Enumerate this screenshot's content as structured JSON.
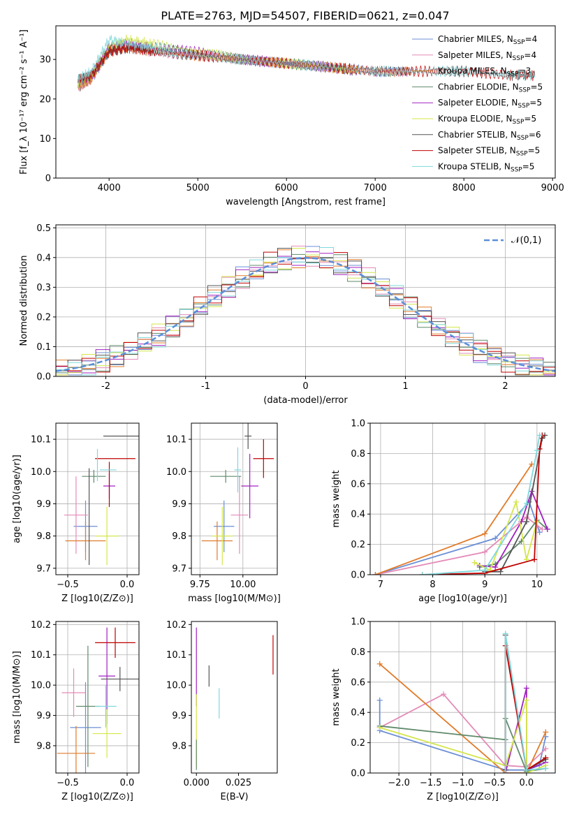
{
  "figure_title": "PLATE=2763, MJD=54507, FIBERID=0621, z=0.047",
  "chart_data": [
    {
      "id": "spectrum",
      "type": "line",
      "xlabel": "wavelength [Angstrom, rest frame]",
      "ylabel": "Flux [f_λ 10⁻¹⁷ erg cm⁻² s⁻¹ A⁻¹]",
      "xlim": [
        3400,
        9030
      ],
      "ylim": [
        0,
        38.5
      ],
      "xticks": [
        4000,
        5000,
        6000,
        7000,
        8000,
        9000
      ],
      "yticks": [
        0,
        10,
        20,
        30
      ],
      "grid": false,
      "legend_position": "top-right",
      "series": [
        {
          "name": "Chabrier MILES, N_SSP=4",
          "color": "#6b8fd6",
          "x": [
            3650,
            3800,
            4000,
            4200,
            4500,
            5000,
            5500,
            6000,
            6500,
            7000,
            7400
          ],
          "y": [
            23,
            25,
            32,
            33,
            32,
            31,
            30,
            29,
            28,
            27,
            27
          ]
        },
        {
          "name": "Salpeter MILES, N_SSP=4",
          "color": "#e48bb8",
          "x": [
            3650,
            3800,
            4000,
            4200,
            4500,
            5000,
            5500,
            6000,
            6500,
            7000,
            7400
          ],
          "y": [
            23,
            25,
            32,
            33,
            32,
            31,
            30,
            29,
            28,
            27,
            27
          ]
        },
        {
          "name": "Kroupa MILES, N_SSP=3",
          "color": "#e07b2a",
          "x": [
            3650,
            3800,
            4000,
            4200,
            4500,
            5000,
            5500,
            6000,
            6500,
            7000,
            7400
          ],
          "y": [
            23,
            25,
            32,
            33,
            32,
            31,
            30,
            29,
            28,
            27,
            27
          ]
        },
        {
          "name": "Chabrier ELODIE, N_SSP=5",
          "color": "#5f8a6a",
          "x": [
            3650,
            3800,
            4000,
            4200,
            4500,
            5000,
            5500,
            6000,
            6500,
            6800
          ],
          "y": [
            24,
            26,
            33,
            34,
            33,
            32,
            30,
            29,
            28,
            27
          ]
        },
        {
          "name": "Salpeter ELODIE, N_SSP=5",
          "color": "#a020c0",
          "x": [
            3650,
            3800,
            4000,
            4200,
            4500,
            5000,
            5500,
            6000,
            6500,
            6800
          ],
          "y": [
            24,
            26,
            33,
            34,
            33,
            32,
            30,
            29,
            28,
            27
          ]
        },
        {
          "name": "Kroupa ELODIE, N_SSP=5",
          "color": "#d4e64a",
          "x": [
            3650,
            3800,
            4000,
            4200,
            4500,
            5000,
            5500,
            6000,
            6500,
            6800
          ],
          "y": [
            24,
            26,
            33,
            35,
            34,
            32,
            30,
            29,
            28,
            27
          ]
        },
        {
          "name": "Chabrier STELIB, N_SSP=6",
          "color": "#555555",
          "x": [
            3650,
            3800,
            4000,
            4200,
            4500,
            5000,
            5500,
            6000,
            6500,
            7000,
            7500,
            8000,
            8500,
            8800
          ],
          "y": [
            25,
            26,
            32,
            33,
            32,
            31,
            30,
            29,
            28,
            27,
            27,
            27,
            26,
            26
          ]
        },
        {
          "name": "Salpeter STELIB, N_SSP=5",
          "color": "#c00000",
          "x": [
            3650,
            3800,
            4000,
            4200,
            4500,
            5000,
            5500,
            6000,
            6500,
            7000,
            7500,
            8000,
            8500,
            8800
          ],
          "y": [
            25,
            26,
            32,
            33,
            32,
            31,
            30,
            29,
            28,
            27,
            27,
            27,
            26,
            26
          ]
        },
        {
          "name": "Kroupa STELIB, N_SSP=5",
          "color": "#7fd8dc",
          "x": [
            3650,
            3800,
            4000,
            4200,
            4500,
            5000,
            5500,
            6000,
            6500,
            7000,
            7500,
            8000,
            8500,
            8800
          ],
          "y": [
            25,
            27,
            35,
            34,
            33,
            31,
            30,
            29,
            28,
            27,
            27,
            27,
            26,
            26
          ]
        }
      ]
    },
    {
      "id": "residuals",
      "type": "line",
      "xlabel": "(data-model)/error",
      "ylabel": "Normed distribution",
      "xlim": [
        -2.5,
        2.5
      ],
      "ylim": [
        0,
        0.51
      ],
      "xticks": [
        -2,
        -1,
        0,
        1,
        2
      ],
      "yticks": [
        0.0,
        0.1,
        0.2,
        0.3,
        0.4,
        0.5
      ],
      "grid": true,
      "legend_position": "top-right",
      "reference_curve": {
        "name": "𝒩(0,1)",
        "color": "#5b8fd8",
        "mean": 0,
        "sigma": 1
      },
      "histogram_colors": [
        "#6b8fd6",
        "#e48bb8",
        "#e07b2a",
        "#5f8a6a",
        "#a020c0",
        "#d4e64a",
        "#555555",
        "#c00000",
        "#7fd8dc"
      ]
    },
    {
      "id": "age-vs-Z",
      "type": "scatter",
      "xlabel": "Z [log10(Z/Z⊙)]",
      "ylabel": "age [log10(age/yr)]",
      "xlim": [
        -0.6,
        0.1
      ],
      "ylim": [
        9.68,
        10.15
      ],
      "xticks": [
        -0.5,
        0.0
      ],
      "xtick_labels": [
        "−0.5",
        "0.0"
      ],
      "yticks": [
        9.7,
        9.8,
        9.9,
        10.0,
        10.1
      ],
      "grid": true,
      "points": [
        {
          "color": "#6b8fd6",
          "x": -0.35,
          "y": 9.83,
          "xerr": 0.1,
          "yerr": 0.08
        },
        {
          "color": "#e48bb8",
          "x": -0.43,
          "y": 9.865,
          "xerr": 0.1,
          "yerr": 0.12
        },
        {
          "color": "#e07b2a",
          "x": -0.35,
          "y": 9.785,
          "xerr": 0.17,
          "yerr": 0.06
        },
        {
          "color": "#5f8a6a",
          "x": -0.28,
          "y": 9.985,
          "xerr": 0.1,
          "yerr": 0.02
        },
        {
          "color": "#a020c0",
          "x": -0.15,
          "y": 9.955,
          "xerr": 0.05,
          "yerr": 0.04
        },
        {
          "color": "#d4e64a",
          "x": -0.17,
          "y": 9.8,
          "xerr": 0.1,
          "yerr": 0.09
        },
        {
          "color": "#555555",
          "x": -0.03,
          "y": 10.11,
          "xerr": 0.17,
          "yerr": 0.0
        },
        {
          "color": "#555555",
          "x": -0.32,
          "y": 9.86,
          "xerr": 0.0,
          "yerr": 0.15
        },
        {
          "color": "#c00000",
          "x": -0.1,
          "y": 10.04,
          "xerr": 0.17,
          "yerr": 0.0
        },
        {
          "color": "#c00000",
          "x": -0.15,
          "y": 9.96,
          "xerr": 0.0,
          "yerr": 0.07
        },
        {
          "color": "#7fd8dc",
          "x": -0.16,
          "y": 10.005,
          "xerr": 0.07,
          "yerr": 0.0
        },
        {
          "color": "#7fd8dc",
          "x": -0.25,
          "y": 10.02,
          "xerr": 0.0,
          "yerr": 0.05
        }
      ]
    },
    {
      "id": "age-vs-mass",
      "type": "scatter",
      "xlabel": "mass [log10(M/M⊙)]",
      "ylabel": "",
      "xlim": [
        9.7,
        10.2
      ],
      "ylim": [
        9.68,
        10.15
      ],
      "xticks": [
        9.75,
        10.0
      ],
      "xtick_labels": [
        "9.75",
        "10.00"
      ],
      "yticks": [
        9.7,
        9.8,
        9.9,
        10.0,
        10.1
      ],
      "grid": true,
      "points": [
        {
          "color": "#6b8fd6",
          "x": 9.89,
          "y": 9.83,
          "xerr": 0.06,
          "yerr": 0.08
        },
        {
          "color": "#e48bb8",
          "x": 9.98,
          "y": 9.865,
          "xerr": 0.05,
          "yerr": 0.12
        },
        {
          "color": "#e07b2a",
          "x": 9.85,
          "y": 9.785,
          "xerr": 0.09,
          "yerr": 0.06
        },
        {
          "color": "#5f8a6a",
          "x": 9.9,
          "y": 9.985,
          "xerr": 0.09,
          "yerr": 0.02
        },
        {
          "color": "#a020c0",
          "x": 10.04,
          "y": 9.955,
          "xerr": 0.05,
          "yerr": 0.1
        },
        {
          "color": "#d4e64a",
          "x": 9.88,
          "y": 9.8,
          "xerr": 0.06,
          "yerr": 0.09
        },
        {
          "color": "#555555",
          "x": 10.03,
          "y": 10.11,
          "xerr": 0.02,
          "yerr": 0.04
        },
        {
          "color": "#c00000",
          "x": 10.12,
          "y": 10.04,
          "xerr": 0.06,
          "yerr": 0.06
        },
        {
          "color": "#7fd8dc",
          "x": 9.97,
          "y": 10.005,
          "xerr": 0.02,
          "yerr": 0.07
        }
      ]
    },
    {
      "id": "weight-vs-age",
      "type": "line",
      "xlabel": "age [log10(age/yr)]",
      "ylabel": "mass weight",
      "xlim": [
        6.8,
        10.35
      ],
      "ylim": [
        0,
        1.0
      ],
      "xticks": [
        7,
        8,
        9,
        10
      ],
      "yticks": [
        0.0,
        0.2,
        0.4,
        0.6,
        0.8,
        1.0
      ],
      "grid": true,
      "series": [
        {
          "color": "#6b8fd6",
          "x": [
            6.9,
            9.2,
            9.85,
            10.05
          ],
          "y": [
            0.0,
            0.24,
            0.48,
            0.28
          ]
        },
        {
          "color": "#e48bb8",
          "x": [
            6.9,
            9.0,
            9.8,
            10.1
          ],
          "y": [
            0.0,
            0.15,
            0.38,
            0.3
          ]
        },
        {
          "color": "#e07b2a",
          "x": [
            6.9,
            9.0,
            9.9
          ],
          "y": [
            0.0,
            0.27,
            0.73
          ]
        },
        {
          "color": "#5f8a6a",
          "x": [
            8.9,
            9.2,
            9.7,
            10.0,
            10.2
          ],
          "y": [
            0.05,
            0.07,
            0.22,
            0.36,
            0.3
          ]
        },
        {
          "color": "#a020c0",
          "x": [
            8.9,
            9.2,
            9.7,
            9.9,
            10.2
          ],
          "y": [
            0.06,
            0.05,
            0.35,
            0.55,
            0.3
          ]
        },
        {
          "color": "#d4e64a",
          "x": [
            8.8,
            9.1,
            9.6,
            9.8,
            10.0
          ],
          "y": [
            0.08,
            0.03,
            0.48,
            0.1,
            0.35
          ]
        },
        {
          "color": "#555555",
          "x": [
            9.0,
            9.3,
            9.8,
            10.1,
            10.15
          ],
          "y": [
            0.02,
            0.02,
            0.35,
            0.9,
            0.92
          ]
        },
        {
          "color": "#c00000",
          "x": [
            7.8,
            9.0,
            9.95,
            10.05,
            10.1
          ],
          "y": [
            0.0,
            0.01,
            0.1,
            0.83,
            0.92
          ]
        },
        {
          "color": "#7fd8dc",
          "x": [
            7.8,
            9.0,
            9.8,
            10.0,
            10.05
          ],
          "y": [
            0.0,
            0.03,
            0.47,
            0.82,
            0.92
          ]
        }
      ]
    },
    {
      "id": "mass-vs-Z",
      "type": "scatter",
      "xlabel": "Z [log10(Z/Z⊙)]",
      "ylabel": "mass [log10(M/M⊙)]",
      "xlim": [
        -0.6,
        0.1
      ],
      "ylim": [
        9.71,
        10.21
      ],
      "xticks": [
        -0.5,
        0.0
      ],
      "xtick_labels": [
        "−0.5",
        "0.0"
      ],
      "yticks": [
        9.8,
        9.9,
        10.0,
        10.1,
        10.2
      ],
      "grid": true,
      "points": [
        {
          "color": "#6b8fd6",
          "x": -0.35,
          "y": 9.86,
          "xerr": 0.13,
          "yerr": 0.15
        },
        {
          "color": "#e48bb8",
          "x": -0.45,
          "y": 9.975,
          "xerr": 0.1,
          "yerr": 0.08
        },
        {
          "color": "#e07b2a",
          "x": -0.43,
          "y": 9.775,
          "xerr": 0.16,
          "yerr": 0.09
        },
        {
          "color": "#5f8a6a",
          "x": -0.33,
          "y": 9.93,
          "xerr": 0.1,
          "yerr": 0.2
        },
        {
          "color": "#a020c0",
          "x": -0.17,
          "y": 10.03,
          "xerr": 0.07,
          "yerr": 0.16
        },
        {
          "color": "#d4e64a",
          "x": -0.17,
          "y": 9.84,
          "xerr": 0.12,
          "yerr": 0.08
        },
        {
          "color": "#555555",
          "x": -0.06,
          "y": 10.02,
          "xerr": 0.16,
          "yerr": 0.04
        },
        {
          "color": "#c00000",
          "x": -0.1,
          "y": 10.14,
          "xerr": 0.17,
          "yerr": 0.05
        },
        {
          "color": "#7fd8dc",
          "x": -0.18,
          "y": 9.93,
          "xerr": 0.09,
          "yerr": 0.07
        }
      ]
    },
    {
      "id": "mass-vs-EBV",
      "type": "scatter",
      "xlabel": "E(B-V)",
      "ylabel": "",
      "xlim": [
        -0.003,
        0.048
      ],
      "ylim": [
        9.71,
        10.21
      ],
      "xticks": [
        0.0,
        0.025
      ],
      "xtick_labels": [
        "0.000",
        "0.025"
      ],
      "yticks": [
        9.8,
        9.9,
        10.0,
        10.1,
        10.2
      ],
      "grid": false,
      "points": [
        {
          "color": "#a020c0",
          "x": 0.0,
          "y": 10.06,
          "xerr": 0,
          "yerr": 0.13
        },
        {
          "color": "#d4e64a",
          "x": 0.0,
          "y": 9.85,
          "xerr": 0,
          "yerr": 0.12
        },
        {
          "color": "#5f8a6a",
          "x": 0.0,
          "y": 9.77,
          "xerr": 0,
          "yerr": 0.05
        },
        {
          "color": "#555555",
          "x": 0.0075,
          "y": 10.03,
          "xerr": 0,
          "yerr": 0.035
        },
        {
          "color": "#7fd8dc",
          "x": 0.0135,
          "y": 9.94,
          "xerr": 0,
          "yerr": 0.05
        },
        {
          "color": "#c00000",
          "x": 0.0455,
          "y": 10.1,
          "xerr": 0,
          "yerr": 0.065
        }
      ]
    },
    {
      "id": "weight-vs-Z",
      "type": "line",
      "xlabel": "Z [log10(Z/Z⊙)]",
      "ylabel": "mass weight",
      "xlim": [
        -2.45,
        0.45
      ],
      "ylim": [
        0,
        1.0
      ],
      "xticks": [
        -2.0,
        -1.5,
        -1.0,
        -0.5,
        0.0
      ],
      "xtick_labels": [
        "−2.0",
        "−1.5",
        "−1.0",
        "−0.5",
        "0.0"
      ],
      "yticks": [
        0.0,
        0.2,
        0.4,
        0.6,
        0.8,
        1.0
      ],
      "grid": true,
      "series": [
        {
          "color": "#6b8fd6",
          "x": [
            -2.3,
            -2.3,
            -0.33,
            0.0,
            0.2,
            0.3
          ],
          "y": [
            0.48,
            0.28,
            0.02,
            0.02,
            0.05,
            0.24
          ]
        },
        {
          "color": "#e48bb8",
          "x": [
            -2.3,
            -1.3,
            -0.33,
            0.0,
            0.3
          ],
          "y": [
            0.3,
            0.52,
            0.05,
            0.04,
            0.16
          ]
        },
        {
          "color": "#e07b2a",
          "x": [
            -2.3,
            -0.33,
            0.0,
            0.3
          ],
          "y": [
            0.72,
            0.0,
            0.0,
            0.27
          ]
        },
        {
          "color": "#5f8a6a",
          "x": [
            -2.3,
            -0.33,
            -0.33,
            0.0,
            0.3
          ],
          "y": [
            0.31,
            0.22,
            0.36,
            0.01,
            0.03
          ]
        },
        {
          "color": "#a020c0",
          "x": [
            -0.33,
            0.0,
            0.0,
            0.3
          ],
          "y": [
            0.0,
            0.56,
            0.02,
            0.07
          ]
        },
        {
          "color": "#d4e64a",
          "x": [
            -2.3,
            -0.33,
            0.0,
            0.0,
            0.3
          ],
          "y": [
            0.3,
            0.05,
            0.48,
            0.0,
            0.05
          ]
        },
        {
          "color": "#555555",
          "x": [
            -0.33,
            -0.33,
            0.0,
            0.3
          ],
          "y": [
            0.02,
            0.91,
            0.02,
            0.09
          ]
        },
        {
          "color": "#c00000",
          "x": [
            -0.33,
            -0.33,
            0.0,
            0.3
          ],
          "y": [
            0.0,
            0.84,
            0.02,
            0.1
          ]
        },
        {
          "color": "#7fd8dc",
          "x": [
            -0.33,
            -0.33,
            0.0,
            0.3
          ],
          "y": [
            0.0,
            0.92,
            0.02,
            0.03
          ]
        }
      ]
    }
  ]
}
